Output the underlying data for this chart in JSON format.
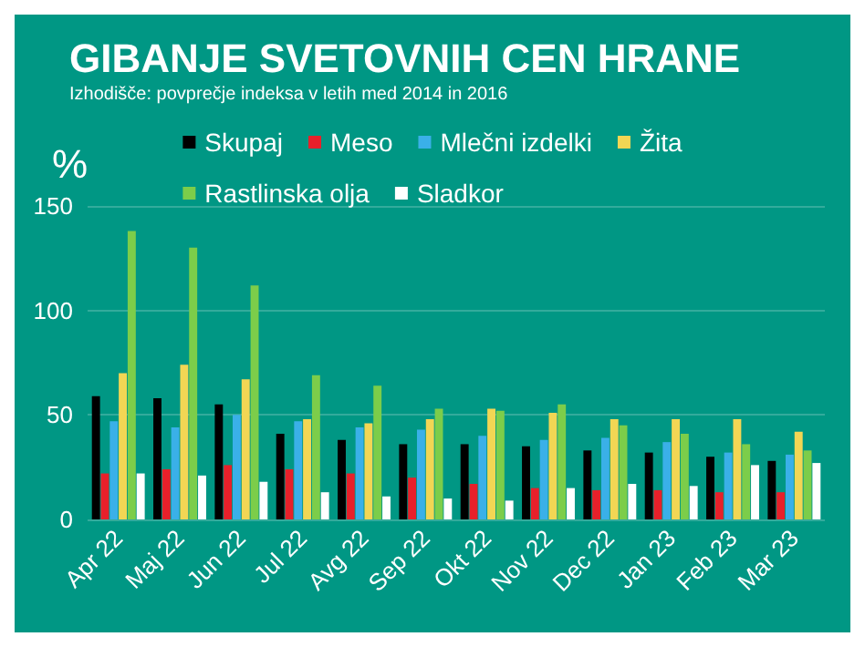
{
  "chart_data": {
    "type": "bar",
    "title": "GIBANJE SVETOVNIH CEN HRANE",
    "subtitle": "Izhodišče: povprečje indeksa v letih med 2014 in 2016",
    "ylabel": "%",
    "categories": [
      "Apr 22",
      "Maj 22",
      "Jun 22",
      "Jul 22",
      "Avg 22",
      "Sep 22",
      "Okt 22",
      "Nov 22",
      "Dec 22",
      "Jan 23",
      "Feb 23",
      "Mar 23"
    ],
    "series": [
      {
        "name": "Skupaj",
        "color": "#000000",
        "values": [
          59,
          58,
          55,
          41,
          38,
          36,
          36,
          35,
          33,
          32,
          30,
          28
        ]
      },
      {
        "name": "Meso",
        "color": "#e8202a",
        "values": [
          22,
          24,
          26,
          24,
          22,
          20,
          17,
          15,
          14,
          14,
          13,
          13
        ]
      },
      {
        "name": "Mlečni izdelki",
        "color": "#3ab0e8",
        "values": [
          47,
          44,
          50,
          47,
          44,
          43,
          40,
          38,
          39,
          37,
          32,
          31
        ]
      },
      {
        "name": "Žita",
        "color": "#f2d654",
        "values": [
          70,
          74,
          67,
          48,
          46,
          48,
          53,
          51,
          48,
          48,
          48,
          42
        ]
      },
      {
        "name": "Rastlinska olja",
        "color": "#7ccd4a",
        "values": [
          138,
          130,
          112,
          69,
          64,
          53,
          52,
          55,
          45,
          41,
          36,
          33
        ]
      },
      {
        "name": "Sladkor",
        "color": "#ffffff",
        "values": [
          22,
          21,
          18,
          13,
          11,
          10,
          9,
          15,
          17,
          16,
          26,
          27
        ]
      }
    ],
    "ylim": [
      0,
      150
    ],
    "yticks": [
      0,
      50,
      100,
      150
    ],
    "grid": "y",
    "legend": "top"
  }
}
